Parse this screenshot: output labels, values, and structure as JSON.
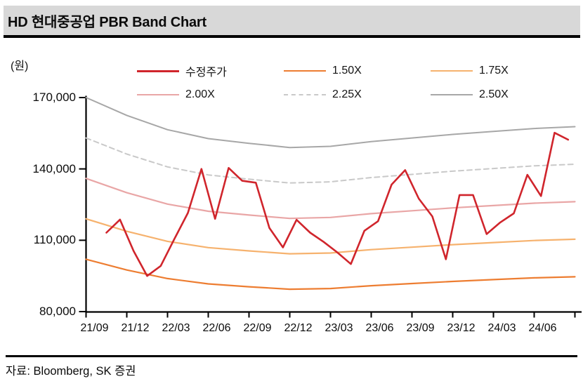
{
  "header": {
    "title": "HD 현대중공업 PBR Band Chart"
  },
  "footer": {
    "source": "자료: Bloomberg, SK 증권"
  },
  "chart_data": {
    "type": "line",
    "title": "HD 현대중공업 PBR Band Chart",
    "y_unit_label": "(원)",
    "ylim": [
      80000,
      170000
    ],
    "yticks": [
      170000,
      140000,
      110000,
      80000
    ],
    "ytick_labels": [
      "170,000",
      "140,000",
      "110,000",
      "80,000"
    ],
    "xtick_labels": [
      "21/09",
      "21/12",
      "22/03",
      "22/06",
      "22/09",
      "22/12",
      "23/03",
      "23/06",
      "23/09",
      "23/12",
      "24/03",
      "24/06"
    ],
    "x_months_total": 36,
    "grid": false,
    "legend_position": "top",
    "axis_color": "#000000",
    "series": [
      {
        "name": "수정주가",
        "role": "price",
        "color": "#d0252c",
        "line_style": "solid",
        "line_width": 2.6,
        "x_months": [
          "21/10",
          "21/11",
          "21/12",
          "22/01",
          "22/02",
          "22/03",
          "22/04",
          "22/05",
          "22/06",
          "22/07",
          "22/08",
          "22/09",
          "22/10",
          "22/11",
          "22/12",
          "23/01",
          "23/02",
          "23/03",
          "23/04",
          "23/05",
          "23/06",
          "23/07",
          "23/08",
          "23/09",
          "23/10",
          "23/11",
          "23/12",
          "24/01",
          "24/02",
          "24/03",
          "24/04",
          "24/05",
          "24/06",
          "24/07",
          "24/08"
        ],
        "x_month_indices": [
          1,
          2,
          3,
          4,
          5,
          6,
          7,
          8,
          9,
          10,
          11,
          12,
          13,
          14,
          15,
          16,
          17,
          18,
          19,
          20,
          21,
          22,
          23,
          24,
          25,
          26,
          27,
          28,
          29,
          30,
          31,
          32,
          33,
          34,
          35
        ],
        "values": [
          113200,
          118700,
          105500,
          95000,
          99200,
          110500,
          121500,
          140000,
          119000,
          140400,
          135000,
          134200,
          115200,
          107000,
          118600,
          113200,
          109300,
          104900,
          100000,
          114000,
          118000,
          133400,
          139500,
          127500,
          120000,
          102000,
          129000,
          129000,
          112600,
          117500,
          121300,
          137500,
          128600,
          155200,
          152300
        ]
      },
      {
        "name": "1.50X",
        "role": "band",
        "multiple": 1.5,
        "color": "#ed7d31",
        "line_style": "solid",
        "line_width": 2.2,
        "x_month_indices": [
          0,
          3,
          6,
          9,
          12,
          15,
          18,
          21,
          24,
          27,
          30,
          33,
          36
        ],
        "values": [
          102000,
          97500,
          93900,
          91650,
          90450,
          89400,
          89700,
          90900,
          91800,
          92700,
          93450,
          94200,
          94650
        ]
      },
      {
        "name": "1.75X",
        "role": "band",
        "multiple": 1.75,
        "color": "#f6b26e",
        "line_style": "solid",
        "line_width": 2.2,
        "x_month_indices": [
          0,
          3,
          6,
          9,
          12,
          15,
          18,
          21,
          24,
          27,
          30,
          33,
          36
        ],
        "values": [
          119000,
          113750,
          109550,
          106925,
          105525,
          104300,
          104650,
          106050,
          107100,
          108150,
          109025,
          109900,
          110425
        ]
      },
      {
        "name": "2.00X",
        "role": "band",
        "multiple": 2.0,
        "color": "#e9a6a6",
        "line_style": "solid",
        "line_width": 2.2,
        "x_month_indices": [
          0,
          3,
          6,
          9,
          12,
          15,
          18,
          21,
          24,
          27,
          30,
          33,
          36
        ],
        "values": [
          136000,
          130000,
          125200,
          122200,
          120600,
          119200,
          119600,
          121200,
          122400,
          123600,
          124600,
          125600,
          126200
        ]
      },
      {
        "name": "2.25X",
        "role": "band",
        "multiple": 2.25,
        "color": "#c9c9c9",
        "line_style": "dashed",
        "line_width": 2.0,
        "x_month_indices": [
          0,
          3,
          6,
          9,
          12,
          15,
          18,
          21,
          24,
          27,
          30,
          33,
          36
        ],
        "values": [
          153000,
          146250,
          140850,
          137475,
          135675,
          134100,
          134550,
          136350,
          137700,
          139050,
          140175,
          141300,
          141975
        ]
      },
      {
        "name": "2.50X",
        "role": "band",
        "multiple": 2.5,
        "color": "#a7a7a7",
        "line_style": "solid",
        "line_width": 2.0,
        "x_month_indices": [
          0,
          3,
          6,
          9,
          12,
          15,
          18,
          21,
          24,
          27,
          30,
          33,
          36
        ],
        "values": [
          170000,
          162500,
          156500,
          152750,
          150750,
          149000,
          149500,
          151500,
          153000,
          154500,
          155750,
          157000,
          157750
        ]
      }
    ]
  }
}
